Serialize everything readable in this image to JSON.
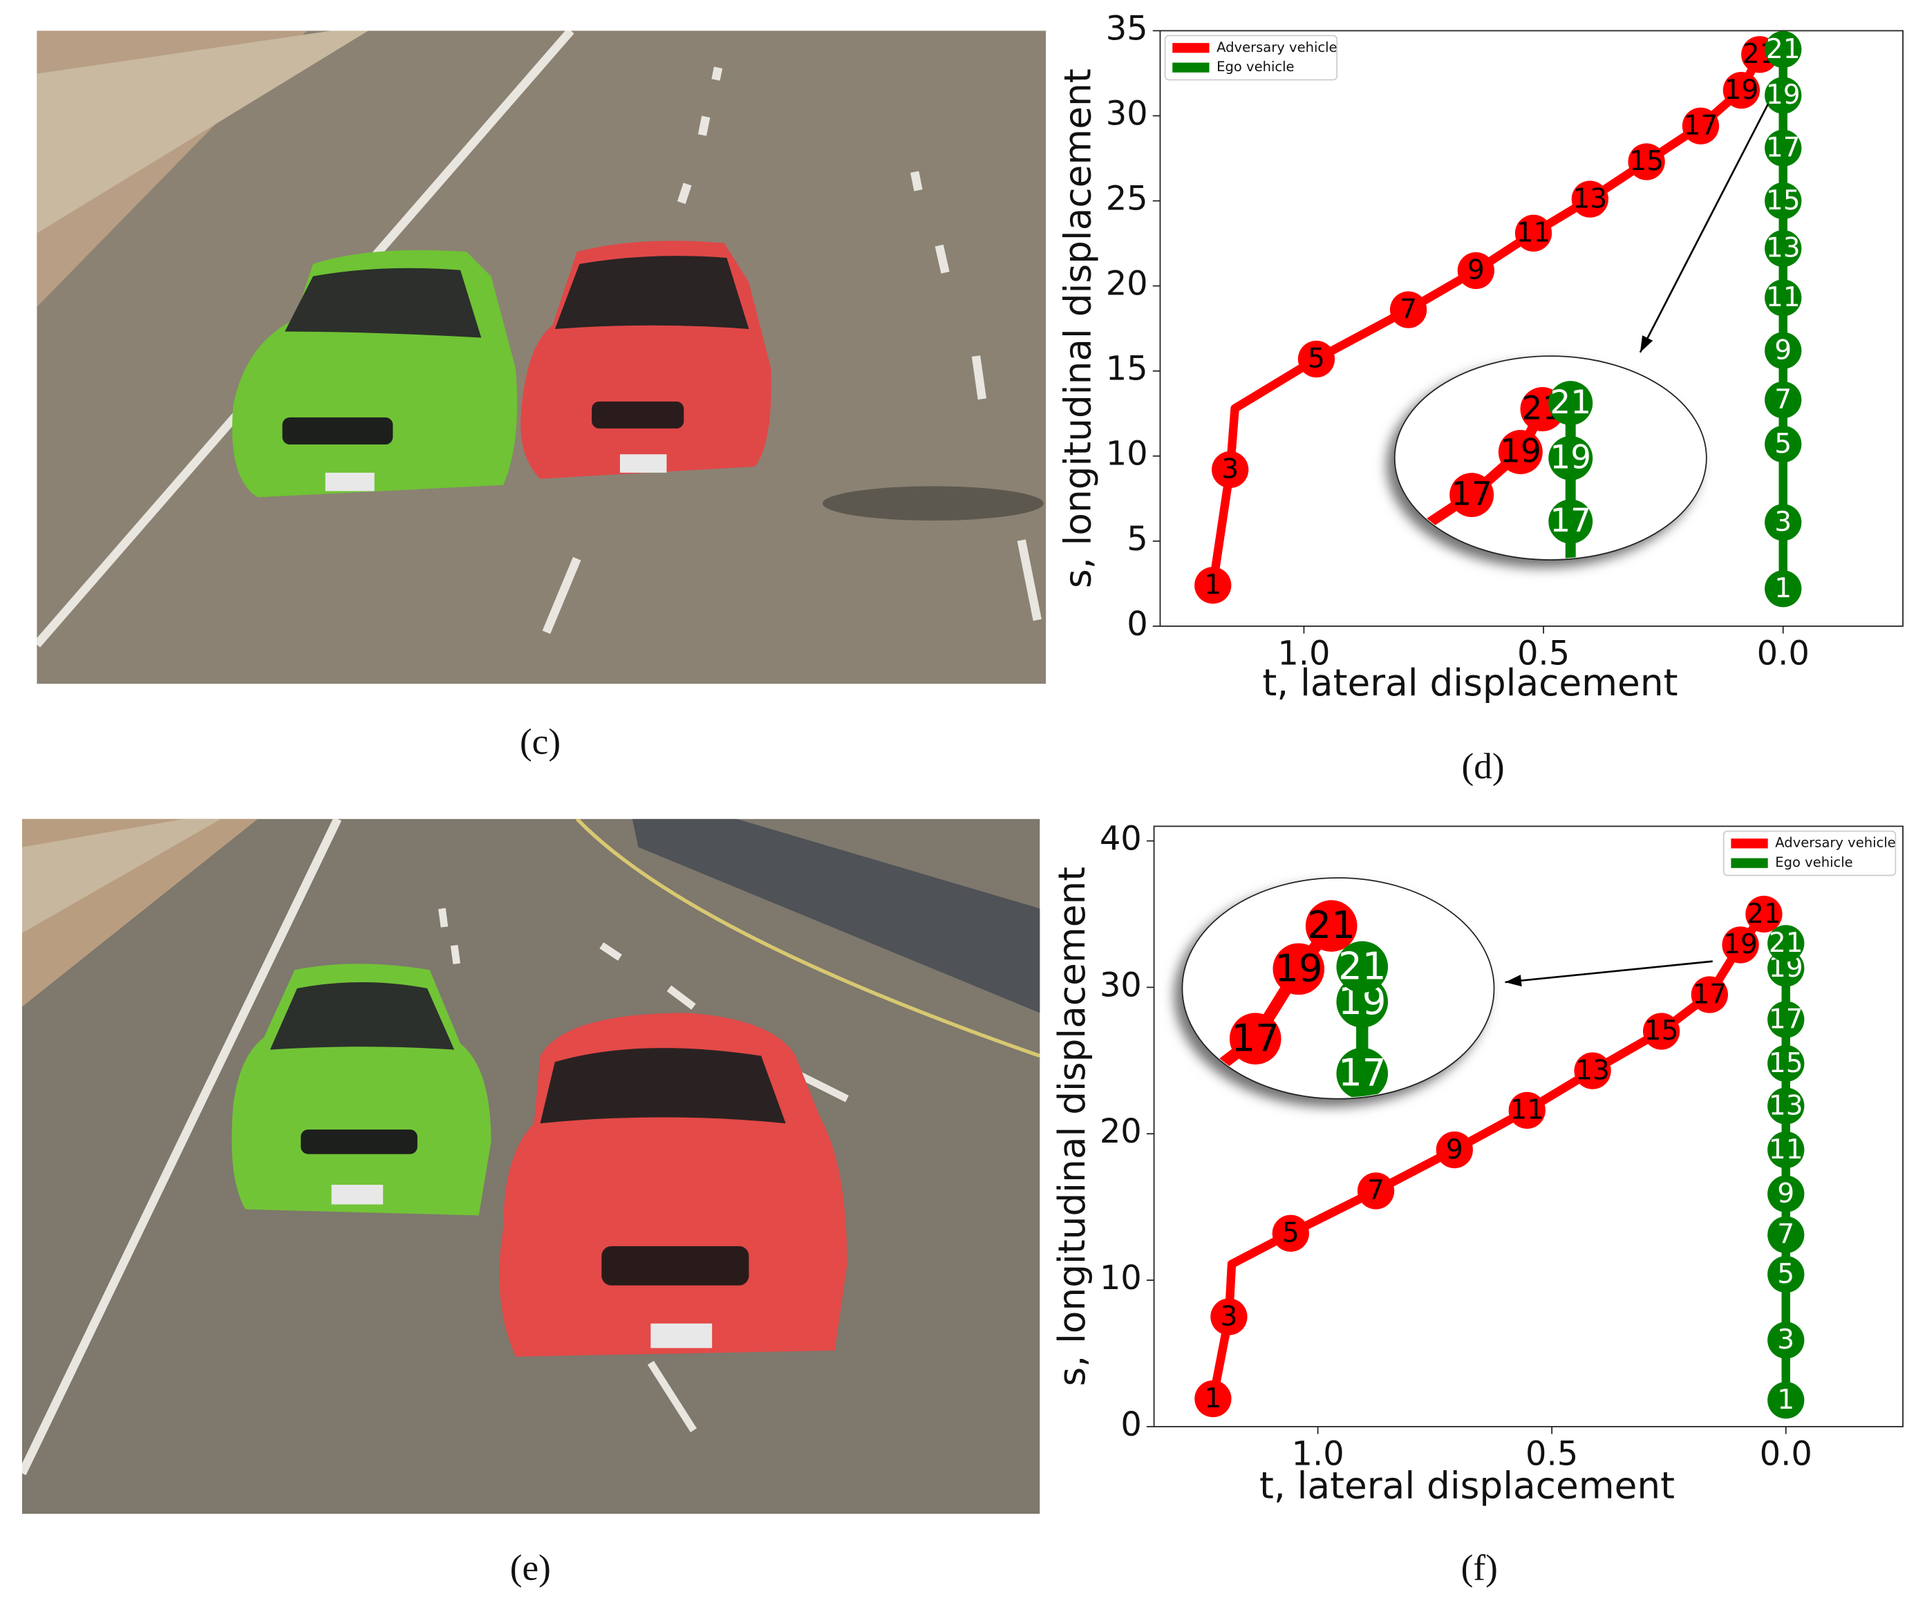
{
  "captions": [
    "(c)",
    "(d)",
    "(e)",
    "(f)"
  ],
  "chart_data": [
    {
      "type": "line",
      "xlabel": "t, lateral displacement",
      "ylabel": "s, longitudinal displacement",
      "xlim": [
        1.3,
        -0.25
      ],
      "ylim": [
        0,
        35
      ],
      "xticks": [
        {
          "value": 1,
          "label": "1.0"
        },
        0.5,
        {
          "value": 0,
          "label": "0.0"
        }
      ],
      "yticks": [
        0,
        5,
        10,
        15,
        20,
        25,
        30,
        35
      ],
      "legend": "upper left",
      "series": [
        {
          "name": "Adversary vehicle",
          "color": "#ff0000",
          "label_color": "#000000",
          "x": [
            1.19,
            1.154,
            1.144,
            0.974,
            0.782,
            0.641,
            0.521,
            0.403,
            0.285,
            0.172,
            0.087,
            0.049
          ],
          "values": [
            2.4,
            9.2,
            12.8,
            15.7,
            18.6,
            20.9,
            23.1,
            25.1,
            27.3,
            29.4,
            31.5,
            33.6
          ],
          "labels": [
            "1",
            "3",
            null,
            "5",
            "7",
            "9",
            "11",
            "13",
            "15",
            "17",
            "19",
            "21"
          ]
        },
        {
          "name": "Ego vehicle",
          "color": "#008000",
          "label_color": "#ffffff",
          "x": [
            0,
            0,
            0,
            0,
            0,
            0,
            0,
            0,
            0,
            0,
            0
          ],
          "values": [
            2.2,
            6.1,
            10.7,
            13.3,
            16.2,
            19.3,
            22.2,
            25.0,
            28.1,
            31.2,
            33.9
          ],
          "labels": [
            "1",
            "3",
            "5",
            "7",
            "9",
            "11",
            "13",
            "15",
            "17",
            "19",
            "21"
          ]
        }
      ]
    },
    {
      "type": "line",
      "xlabel": "t, lateral displacement",
      "ylabel": "s, longitudinal displacement",
      "xlim": [
        1.35,
        -0.25
      ],
      "ylim": [
        0,
        41
      ],
      "xticks": [
        {
          "value": 1,
          "label": "1.0"
        },
        0.5,
        {
          "value": 0,
          "label": "0.0"
        }
      ],
      "yticks": [
        0,
        10,
        20,
        30,
        40
      ],
      "legend": "upper right",
      "series": [
        {
          "name": "Adversary vehicle",
          "color": "#ff0000",
          "label_color": "#000000",
          "x": [
            1.224,
            1.19,
            1.184,
            1.058,
            0.876,
            0.708,
            0.553,
            0.413,
            0.266,
            0.163,
            0.097,
            0.047
          ],
          "values": [
            1.9,
            7.5,
            11.1,
            13.2,
            16.1,
            18.9,
            21.6,
            24.3,
            27.0,
            29.5,
            32.9,
            35.0
          ],
          "labels": [
            "1",
            "3",
            null,
            "5",
            "7",
            "9",
            "11",
            "13",
            "15",
            "17",
            "19",
            "21"
          ]
        },
        {
          "name": "Ego vehicle",
          "color": "#008000",
          "label_color": "#ffffff",
          "x": [
            0,
            0,
            0,
            0,
            0,
            0,
            0,
            0,
            0,
            0,
            0
          ],
          "values": [
            1.8,
            5.9,
            10.4,
            13.1,
            15.9,
            18.9,
            21.9,
            24.8,
            27.8,
            31.3,
            33.0
          ],
          "labels": [
            "1",
            "3",
            "5",
            "7",
            "9",
            "11",
            "13",
            "15",
            "17",
            "19",
            "21"
          ]
        }
      ]
    }
  ]
}
